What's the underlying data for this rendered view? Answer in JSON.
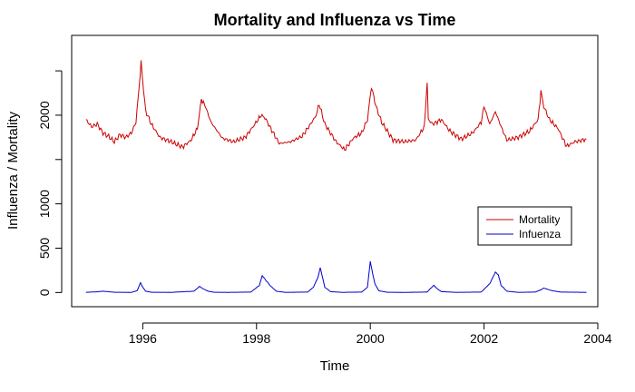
{
  "chart_data": {
    "type": "line",
    "title": "Mortality and Influenza vs Time",
    "xlabel": "Time",
    "ylabel": "Influenza / Mortality",
    "xlim": [
      1994.75,
      2004.0
    ],
    "ylim": [
      -160,
      2900
    ],
    "x_ticks": [
      1996,
      1998,
      2000,
      2002,
      2004
    ],
    "x_tick_labels": [
      "1996",
      "1998",
      "2000",
      "2002",
      "2004"
    ],
    "y_ticks": [
      0,
      500,
      1000,
      1500,
      2000,
      2500
    ],
    "y_tick_labels": [
      "0",
      "500",
      "1000",
      "",
      "2000",
      ""
    ],
    "grid": false,
    "legend_position": "right",
    "series": [
      {
        "name": "Mortality",
        "color": "#cc0000",
        "x": [
          1995.0,
          1995.1,
          1995.2,
          1995.3,
          1995.4,
          1995.5,
          1995.6,
          1995.7,
          1995.8,
          1995.88,
          1995.94,
          1995.97,
          1996.0,
          1996.05,
          1996.15,
          1996.3,
          1996.5,
          1996.7,
          1996.85,
          1996.96,
          1997.03,
          1997.1,
          1997.2,
          1997.4,
          1997.6,
          1997.8,
          1997.95,
          1998.08,
          1998.15,
          1998.25,
          1998.4,
          1998.6,
          1998.8,
          1998.95,
          1999.05,
          1999.1,
          1999.2,
          1999.4,
          1999.55,
          1999.7,
          1999.85,
          1999.95,
          2000.02,
          2000.1,
          2000.2,
          2000.4,
          2000.6,
          2000.8,
          2000.95,
          2001.0,
          2001.02,
          2001.1,
          2001.25,
          2001.4,
          2001.6,
          2001.8,
          2001.95,
          2002.0,
          2002.1,
          2002.2,
          2002.3,
          2002.4,
          2002.6,
          2002.8,
          2002.95,
          2003.0,
          2003.05,
          2003.15,
          2003.3,
          2003.45,
          2003.6,
          2003.8
        ],
        "values": [
          1950,
          1870,
          1900,
          1800,
          1760,
          1700,
          1780,
          1750,
          1800,
          1920,
          2350,
          2600,
          2380,
          2050,
          1900,
          1750,
          1700,
          1640,
          1720,
          1850,
          2180,
          2100,
          1920,
          1740,
          1700,
          1750,
          1880,
          2000,
          1970,
          1850,
          1680,
          1700,
          1760,
          1900,
          2000,
          2130,
          1900,
          1700,
          1610,
          1740,
          1800,
          1950,
          2320,
          2100,
          1920,
          1720,
          1700,
          1720,
          1870,
          2370,
          1950,
          1900,
          1950,
          1820,
          1730,
          1800,
          1920,
          2100,
          1900,
          2040,
          1870,
          1720,
          1750,
          1820,
          1950,
          2270,
          2100,
          1950,
          1850,
          1650,
          1700,
          1730
        ]
      },
      {
        "name": "Infuenza",
        "color": "#0000cc",
        "x": [
          1995.0,
          1995.1,
          1995.2,
          1995.3,
          1995.35,
          1995.5,
          1995.8,
          1995.9,
          1995.96,
          1996.0,
          1996.05,
          1996.15,
          1996.5,
          1996.9,
          1997.0,
          1997.05,
          1997.15,
          1997.25,
          1997.5,
          1997.9,
          1998.05,
          1998.1,
          1998.15,
          1998.25,
          1998.35,
          1998.5,
          1998.9,
          1999.0,
          1999.08,
          1999.12,
          1999.15,
          1999.2,
          1999.3,
          1999.5,
          1999.85,
          1999.95,
          2000.0,
          2000.03,
          2000.08,
          2000.15,
          2000.3,
          2000.6,
          2001.0,
          2001.08,
          2001.12,
          2001.18,
          2001.25,
          2001.5,
          2001.95,
          2002.1,
          2002.2,
          2002.25,
          2002.3,
          2002.4,
          2002.6,
          2002.9,
          2003.0,
          2003.05,
          2003.1,
          2003.2,
          2003.35,
          2003.8
        ],
        "values": [
          2,
          5,
          8,
          15,
          12,
          3,
          2,
          20,
          110,
          60,
          15,
          3,
          2,
          15,
          70,
          45,
          15,
          3,
          2,
          5,
          80,
          190,
          150,
          70,
          15,
          2,
          5,
          60,
          170,
          280,
          200,
          60,
          10,
          2,
          5,
          60,
          350,
          250,
          100,
          20,
          3,
          2,
          5,
          60,
          80,
          40,
          10,
          2,
          5,
          100,
          230,
          200,
          80,
          15,
          2,
          5,
          30,
          50,
          40,
          20,
          5,
          2
        ]
      }
    ]
  }
}
